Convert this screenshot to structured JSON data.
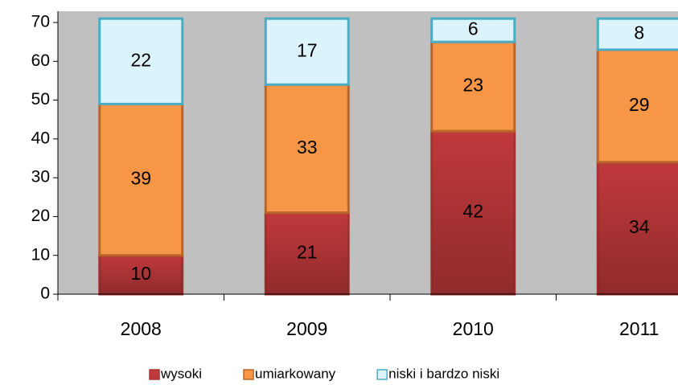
{
  "chart_data": {
    "type": "stacked-bar",
    "categories": [
      "2008",
      "2009",
      "2010",
      "2011"
    ],
    "series": [
      {
        "name": "wysoki",
        "color": "#c0393b",
        "edgecolor": "#a83232",
        "values": [
          10,
          21,
          42,
          34
        ]
      },
      {
        "name": "umiarkowany",
        "color": "#f79646",
        "edgecolor": "#b8652a",
        "values": [
          39,
          33,
          23,
          29
        ]
      },
      {
        "name": "niski i bardzo niski",
        "color": "#dbf3fb",
        "edgecolor": "#4bacc6",
        "values": [
          22,
          17,
          6,
          8
        ]
      }
    ],
    "ylim": [
      0,
      70
    ],
    "yticks": [
      0,
      10,
      20,
      30,
      40,
      50,
      60,
      70
    ],
    "legend": "bottom"
  }
}
